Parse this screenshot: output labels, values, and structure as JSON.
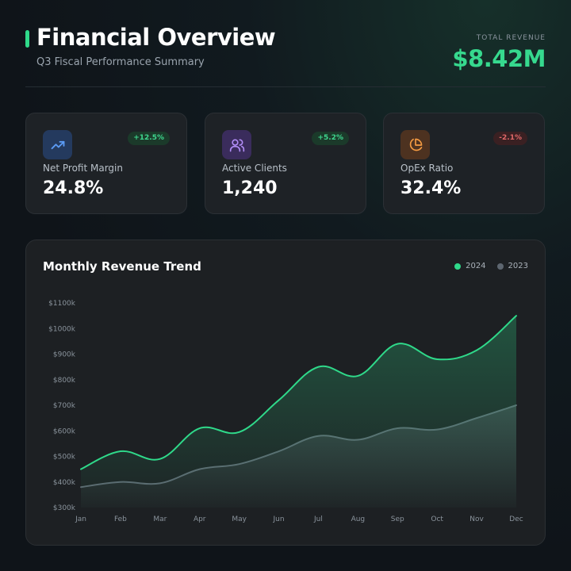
{
  "header": {
    "title": "Financial Overview",
    "subtitle": "Q3 Fiscal Performance Summary",
    "total_revenue_label": "TOTAL REVENUE",
    "total_revenue_value": "$8.42M"
  },
  "kpis": [
    {
      "label": "Net Profit Margin",
      "value": "24.8%",
      "change": "+12.5%",
      "trend": "up",
      "icon": "trending-up-icon",
      "color": "#4f8cf0"
    },
    {
      "label": "Active Clients",
      "value": "1,240",
      "change": "+5.2%",
      "trend": "up",
      "icon": "users-icon",
      "color": "#a77ef0"
    },
    {
      "label": "OpEx Ratio",
      "value": "32.4%",
      "change": "-2.1%",
      "trend": "down",
      "icon": "pie-chart-icon",
      "color": "#f0933a"
    }
  ],
  "colors": {
    "accent": "#36d98e",
    "series_2024": "#2fd98a",
    "series_2023": "#5d6670",
    "negative": "#e06868"
  },
  "chart_data": {
    "type": "area",
    "title": "Monthly Revenue Trend",
    "categories": [
      "Jan",
      "Feb",
      "Mar",
      "Apr",
      "May",
      "Jun",
      "Jul",
      "Aug",
      "Sep",
      "Oct",
      "Nov",
      "Dec"
    ],
    "y_tick_labels": [
      "$300k",
      "$400k",
      "$500k",
      "$600k",
      "$700k",
      "$800k",
      "$900k",
      "$1000k",
      "$1100k"
    ],
    "ylim": [
      300,
      1100
    ],
    "y_ticks": [
      300,
      400,
      500,
      600,
      700,
      800,
      900,
      1000,
      1100
    ],
    "legend_position": "top-right",
    "grid": false,
    "series": [
      {
        "name": "2024",
        "values": [
          450,
          520,
          490,
          610,
          595,
          720,
          850,
          815,
          940,
          880,
          915,
          1050
        ]
      },
      {
        "name": "2023",
        "values": [
          380,
          400,
          395,
          450,
          470,
          520,
          580,
          565,
          610,
          605,
          650,
          700
        ]
      }
    ]
  }
}
